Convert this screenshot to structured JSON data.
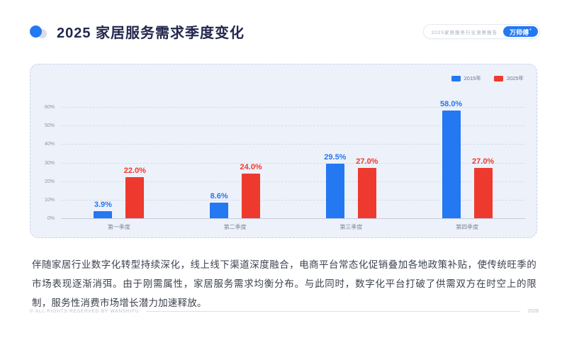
{
  "header": {
    "title": "2025 家居服务需求季度变化",
    "badge": {
      "report_label": "2025家居服务行业洞察报告",
      "brand_label": "万师傅",
      "brand_mark": "®"
    }
  },
  "chart_data": {
    "type": "bar",
    "categories": [
      "第一季度",
      "第二季度",
      "第三季度",
      "第四季度"
    ],
    "series": [
      {
        "name": "2015年",
        "color": "#2478f2",
        "values": [
          3.9,
          8.6,
          29.5,
          58.0
        ]
      },
      {
        "name": "2025年",
        "color": "#ee3a2e",
        "values": [
          22.0,
          24.0,
          27.0,
          27.0
        ]
      }
    ],
    "yticks": [
      60,
      50,
      40,
      30,
      20,
      10,
      0
    ],
    "ylim": [
      0,
      60
    ],
    "y_unit": "%",
    "grid": "horizontal-dashed",
    "legend_position": "top-right",
    "value_labels": "one-decimal-percent"
  },
  "paragraph": "伴随家居行业数字化转型持续深化，线上线下渠道深度融合，电商平台常态化促销叠加各地政策补贴，使传统旺季的市场表现逐渐消弭。由于刚需属性，家居服务需求均衡分布。与此同时，数字化平台打破了供需双方在时空上的限制，服务性消费市场增长潜力加速释放。",
  "footer": {
    "copyright": "© ALL RIGHTS RESERVED BY WANSHIFU",
    "page": "2026"
  }
}
